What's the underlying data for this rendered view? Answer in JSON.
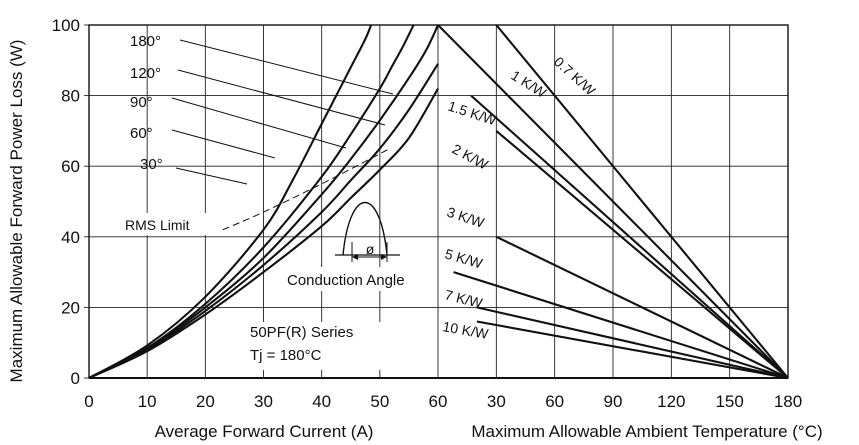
{
  "chart_data": {
    "type": "line",
    "ylabel": "Maximum Allowable Forward Power Loss (W)",
    "ylim": [
      0,
      100
    ],
    "y_ticks": [
      0,
      20,
      40,
      60,
      80,
      100
    ],
    "grid": true,
    "left_panel": {
      "xlabel": "Average Forward Current (A)",
      "xlim": [
        0,
        60
      ],
      "x_ticks": [
        0,
        10,
        20,
        30,
        40,
        50,
        60
      ],
      "series": [
        {
          "name": "180°",
          "points": [
            [
              0,
              0
            ],
            [
              10,
              9.2
            ],
            [
              20,
              23
            ],
            [
              30,
              42
            ],
            [
              35,
              56
            ],
            [
              40,
              72
            ],
            [
              42.5,
              80
            ],
            [
              45,
              88
            ],
            [
              47.5,
              96
            ],
            [
              48.5,
              100
            ]
          ]
        },
        {
          "name": "120°",
          "points": [
            [
              0,
              0
            ],
            [
              10,
              8.5
            ],
            [
              20,
              21
            ],
            [
              30,
              37
            ],
            [
              40,
              57
            ],
            [
              45,
              69
            ],
            [
              50,
              82
            ],
            [
              52,
              88
            ],
            [
              54,
              94
            ],
            [
              55.8,
              100
            ]
          ]
        },
        {
          "name": "90°",
          "points": [
            [
              0,
              0
            ],
            [
              10,
              8.2
            ],
            [
              20,
              20
            ],
            [
              30,
              34
            ],
            [
              40,
              52
            ],
            [
              45,
              62
            ],
            [
              50,
              73
            ],
            [
              55,
              85
            ],
            [
              58,
              93
            ],
            [
              60,
              100
            ]
          ]
        },
        {
          "name": "60°",
          "points": [
            [
              0,
              0
            ],
            [
              10,
              7.9
            ],
            [
              20,
              19
            ],
            [
              30,
              32
            ],
            [
              40,
              47
            ],
            [
              45,
              56
            ],
            [
              50,
              65
            ],
            [
              55,
              76
            ],
            [
              60,
              89
            ]
          ]
        },
        {
          "name": "30°",
          "points": [
            [
              0,
              0
            ],
            [
              10,
              7.6
            ],
            [
              20,
              18
            ],
            [
              30,
              30
            ],
            [
              40,
              43
            ],
            [
              45,
              51
            ],
            [
              50,
              59
            ],
            [
              55,
              68
            ],
            [
              60,
              82
            ]
          ]
        }
      ],
      "rms_limit": [
        [
          23,
          42
        ],
        [
          30,
          47
        ],
        [
          40,
          55
        ],
        [
          50,
          63.5
        ],
        [
          51.5,
          65
        ]
      ],
      "annotations": {
        "rms_limit": "RMS Limit",
        "conduction_angle": "Conduction Angle",
        "phi": "ø",
        "series_label": "50PF(R) Series",
        "tj": "Tj  = 180°C"
      }
    },
    "right_panel": {
      "xlabel": "Maximum Allowable Ambient Temperature (°C)",
      "xlim": [
        0,
        180
      ],
      "x_ticks": [
        "",
        "30",
        "60",
        "90",
        "120",
        "150",
        "180"
      ],
      "series": [
        {
          "name": "0.7 K/W",
          "points": [
            [
              30,
              100
            ],
            [
              180,
              0
            ]
          ]
        },
        {
          "name": "1 K/W",
          "points": [
            [
              0,
              100
            ],
            [
              180,
              0
            ]
          ]
        },
        {
          "name": "1.5 K/W",
          "points": [
            [
              17,
              80
            ],
            [
              180,
              0
            ]
          ]
        },
        {
          "name": "2 K/W",
          "points": [
            [
              30,
              70
            ],
            [
              180,
              0
            ]
          ]
        },
        {
          "name": "3 K/W",
          "points": [
            [
              30,
              40
            ],
            [
              180,
              0
            ]
          ]
        },
        {
          "name": "5 K/W",
          "points": [
            [
              8,
              30
            ],
            [
              180,
              0
            ]
          ]
        },
        {
          "name": "7 K/W",
          "points": [
            [
              20,
              20
            ],
            [
              180,
              0
            ]
          ]
        },
        {
          "name": "10 K/W",
          "points": [
            [
              20,
              16
            ],
            [
              180,
              0
            ]
          ]
        }
      ]
    }
  }
}
